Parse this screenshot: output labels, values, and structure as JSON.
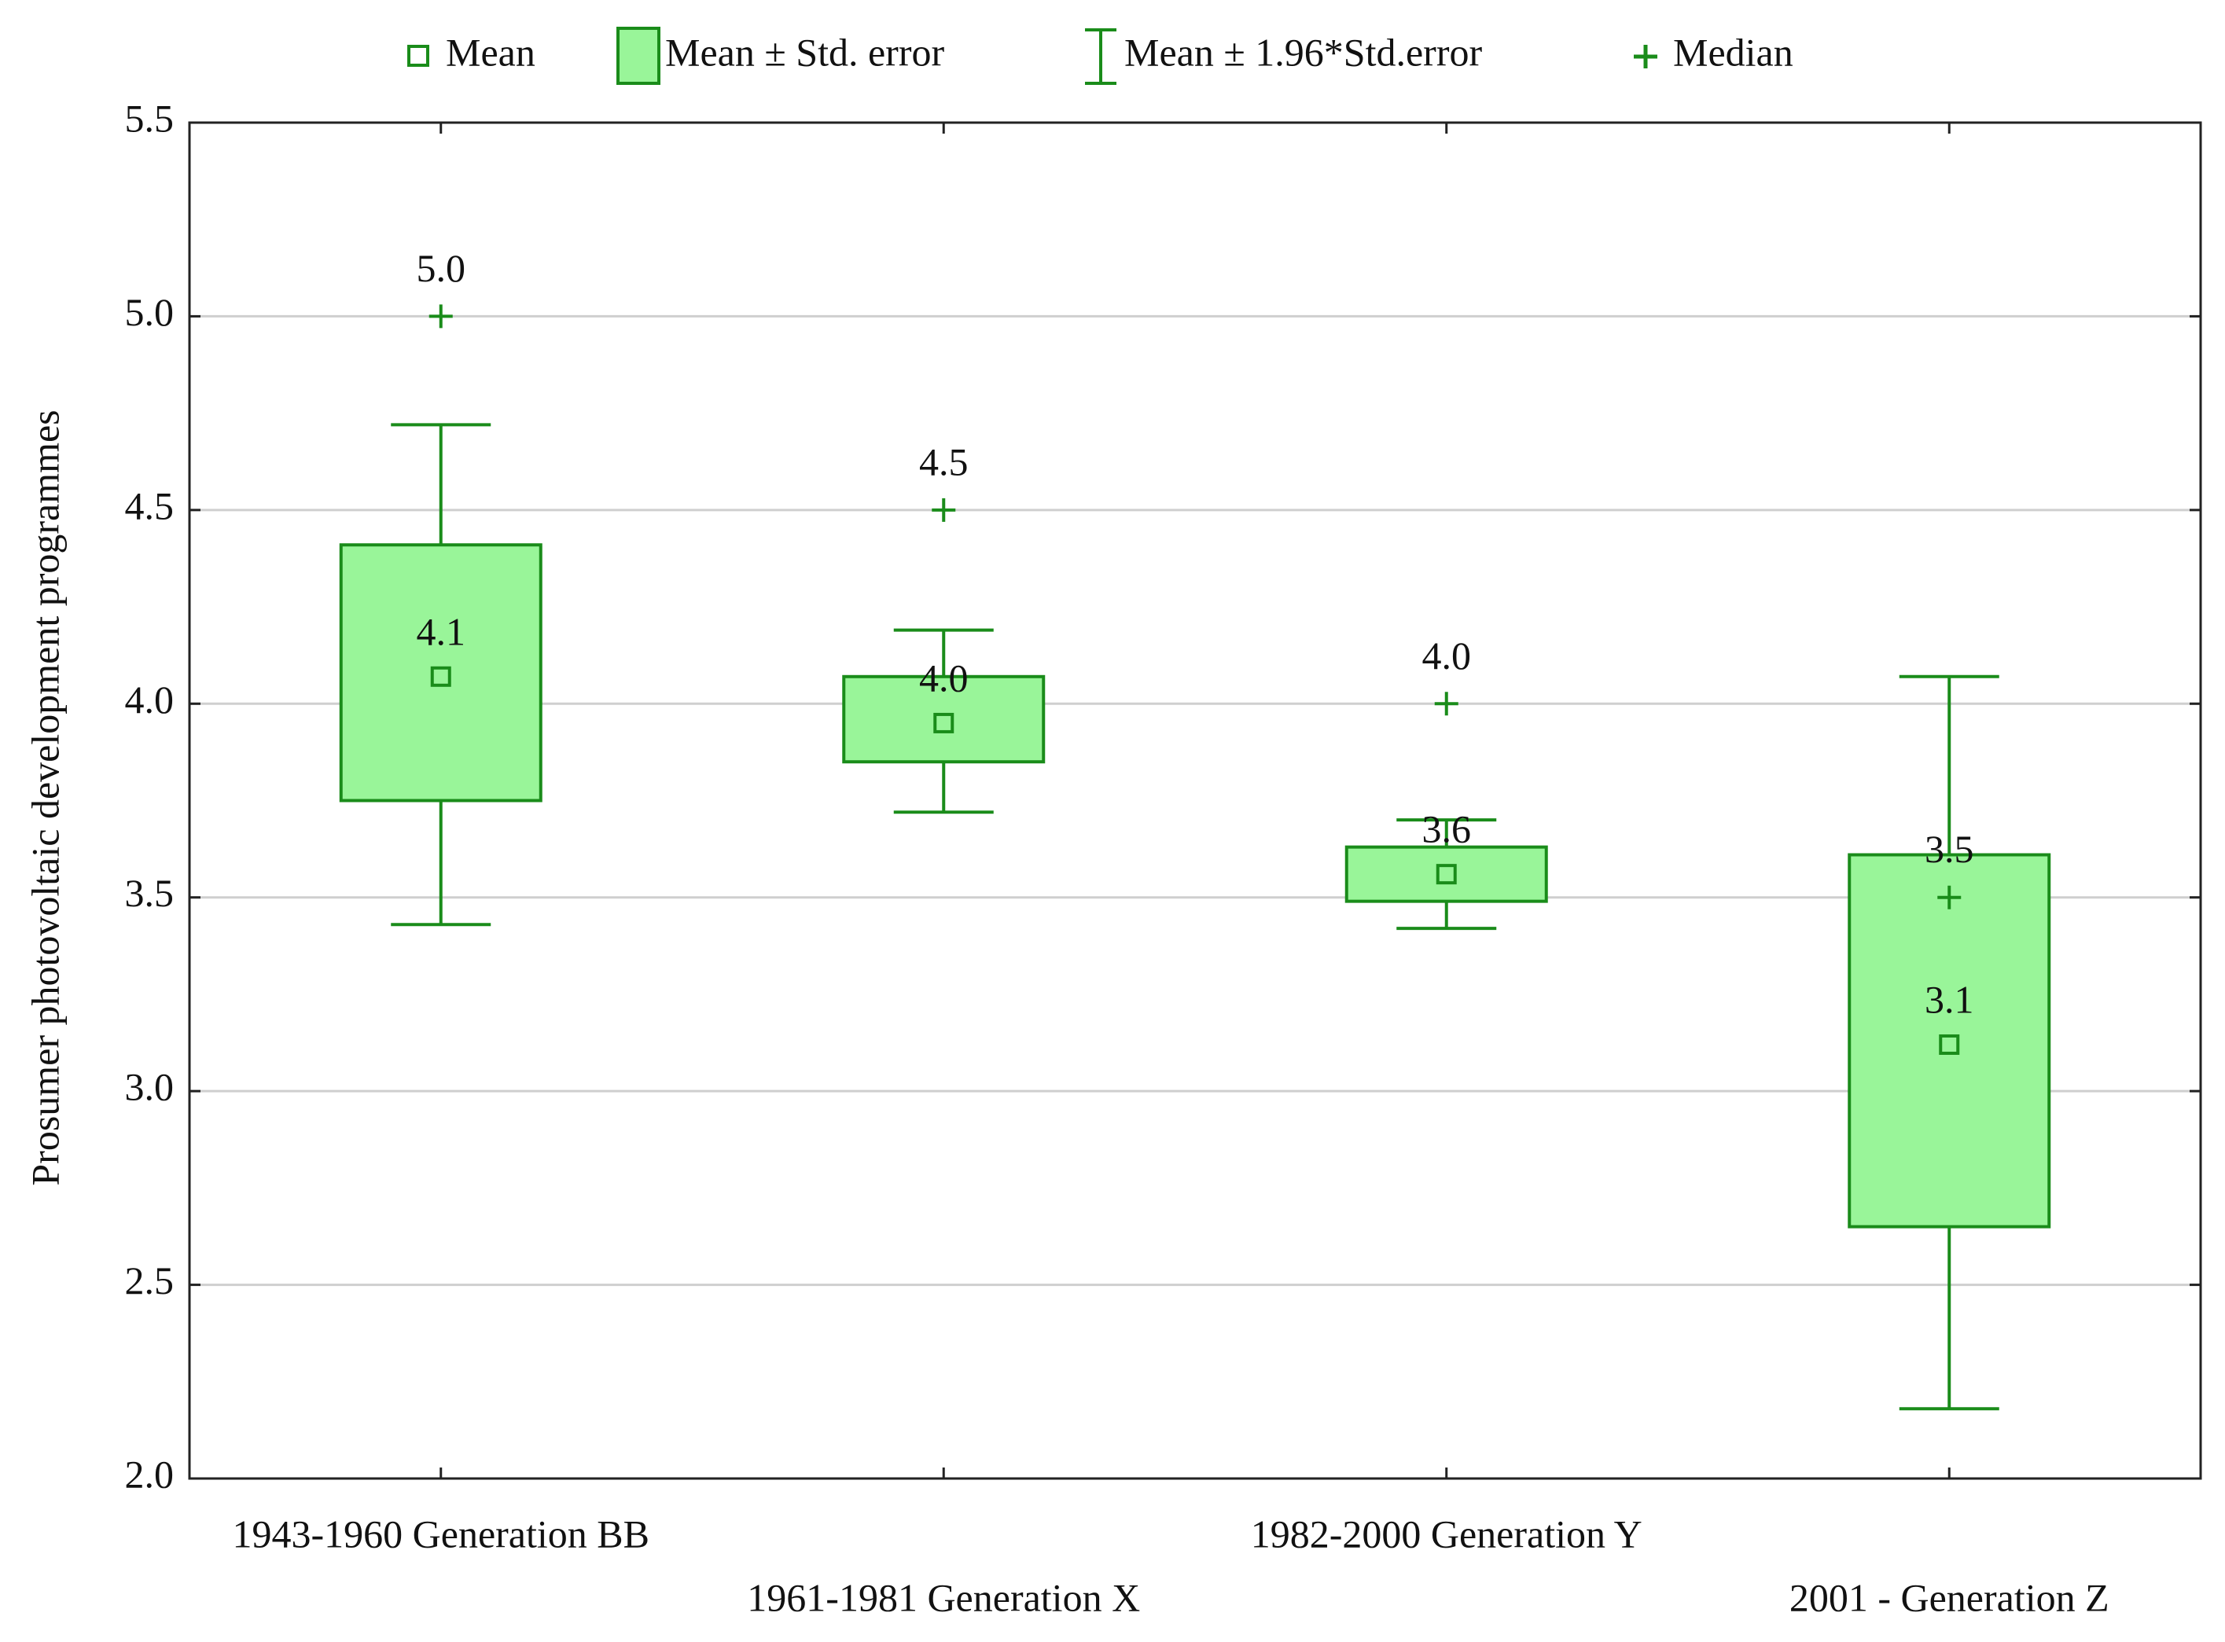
{
  "chart_data": {
    "type": "box",
    "y_label": "Prosumer photovoltaic development programmes",
    "categories": [
      "1943-1960 Generation BB",
      "1961-1981 Generation X",
      "1982-2000 Generation Y",
      "2001 - Generation Z"
    ],
    "legend": [
      "Mean",
      "Mean ± Std. error",
      "Mean ± 1.96*Std.error",
      "Median"
    ],
    "mean": [
      4.07,
      3.95,
      3.56,
      3.12
    ],
    "mean_labels": [
      "4.1",
      "4.0",
      "3.6",
      "3.1"
    ],
    "se_lower": [
      3.75,
      3.85,
      3.49,
      2.65
    ],
    "se_upper": [
      4.41,
      4.07,
      3.63,
      3.61
    ],
    "ci_lower": [
      3.43,
      3.72,
      3.42,
      2.18
    ],
    "ci_upper": [
      4.72,
      4.19,
      3.7,
      4.07
    ],
    "median": [
      5.0,
      4.5,
      4.0,
      3.5
    ],
    "median_labels": [
      "5.0",
      "4.5",
      "4.0",
      "3.5"
    ],
    "color": "#1a8c1a",
    "box_fill": "#99f599",
    "ylim": [
      2.0,
      5.5
    ],
    "yticks": [
      {
        "value": 2.0,
        "label": "2.0"
      },
      2.5,
      {
        "value": 3.0,
        "label": "3.0"
      },
      3.5,
      {
        "value": 4.0,
        "label": "4.0"
      },
      4.5,
      {
        "value": 5.0,
        "label": "5.0"
      },
      5.5
    ],
    "grid": true
  }
}
